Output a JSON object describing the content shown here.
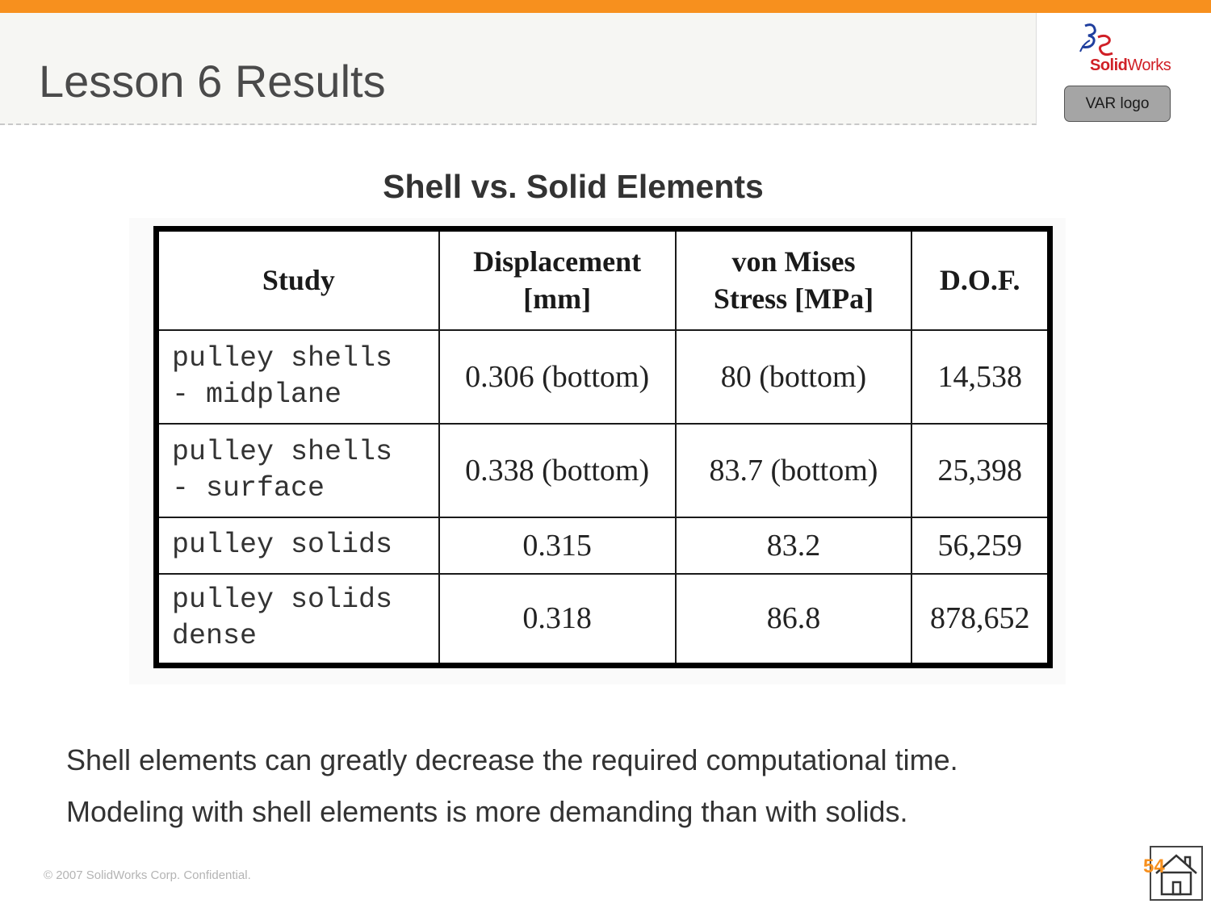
{
  "slide": {
    "title": "Lesson 6 Results",
    "logo_brand_solid": "Solid",
    "logo_brand_works": "Works",
    "var_logo_label": "VAR logo",
    "colors": {
      "accent_orange": "#f7901e",
      "title_band": "#f6f6f3",
      "logo_red": "#d01f26",
      "logo_blue": "#1f3e9e"
    }
  },
  "section": {
    "title": "Shell vs. Solid Elements"
  },
  "table": {
    "headers": {
      "study": "Study",
      "displacement_line1": "Displacement",
      "displacement_line2": "[mm]",
      "stress_line1": "von Mises",
      "stress_line2": "Stress [MPa]",
      "dof": "D.O.F."
    },
    "rows": [
      {
        "study_line1": "pulley shells",
        "study_line2": "- midplane",
        "displacement": "0.306 (bottom)",
        "stress": "80 (bottom)",
        "dof": "14,538"
      },
      {
        "study_line1": "pulley shells",
        "study_line2": "- surface",
        "displacement": "0.338 (bottom)",
        "stress": "83.7 (bottom)",
        "dof": "25,398"
      },
      {
        "study_line1": "pulley solids",
        "study_line2": "",
        "displacement": "0.315",
        "stress": "83.2",
        "dof": "56,259"
      },
      {
        "study_line1": "pulley solids",
        "study_line2": "dense",
        "displacement": "0.318",
        "stress": "86.8",
        "dof": "878,652"
      }
    ]
  },
  "bullets": [
    "Shell elements can greatly decrease the required computational time.",
    "Modeling with shell elements is more demanding than with solids."
  ],
  "footer": {
    "copyright": "© 2007 SolidWorks Corp. Confidential.",
    "page_number": "54",
    "home_icon": "home-icon"
  }
}
